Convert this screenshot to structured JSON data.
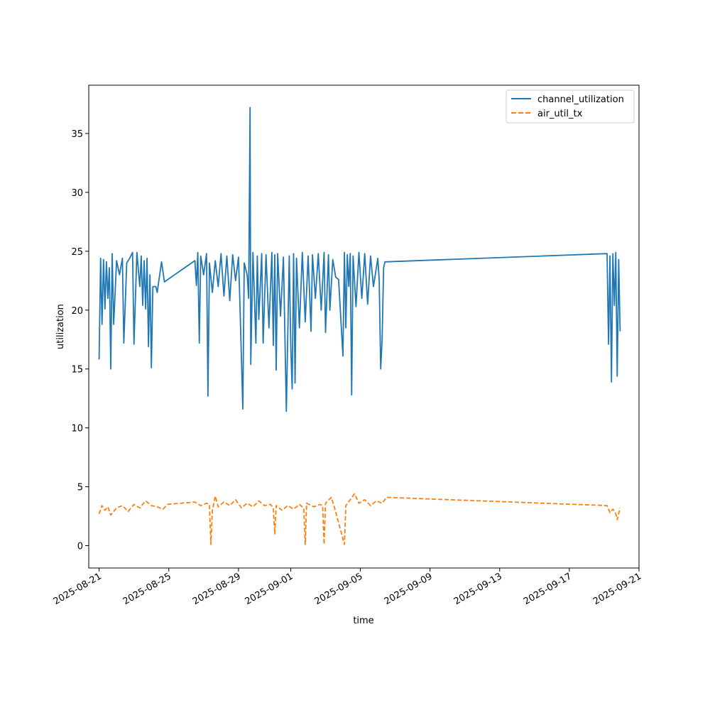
{
  "chart_data": {
    "type": "line",
    "xlabel": "time",
    "ylabel": "utilization",
    "x_type": "date",
    "xlim": [
      "2025-08-20T09:40",
      "2025-09-21"
    ],
    "ylim": [
      -1.9,
      39.1
    ],
    "x_ticks": [
      "2025-08-21",
      "2025-08-25",
      "2025-08-29",
      "2025-09-01",
      "2025-09-05",
      "2025-09-09",
      "2025-09-13",
      "2025-09-17",
      "2025-09-21"
    ],
    "y_ticks": [
      0,
      5,
      10,
      15,
      20,
      25,
      30,
      35
    ],
    "grid": false,
    "legend_position": "top-right",
    "series": [
      {
        "name": "channel_utilization",
        "color": "#1f77b4",
        "style": "solid",
        "points": [
          [
            "2025-08-21T00:00",
            15.8
          ],
          [
            "2025-08-21T02:00",
            24.4
          ],
          [
            "2025-08-21T04:00",
            18.8
          ],
          [
            "2025-08-21T06:00",
            24.3
          ],
          [
            "2025-08-21T08:00",
            20.1
          ],
          [
            "2025-08-21T10:00",
            24.1
          ],
          [
            "2025-08-21T12:00",
            21.0
          ],
          [
            "2025-08-21T14:00",
            23.6
          ],
          [
            "2025-08-21T16:00",
            15.0
          ],
          [
            "2025-08-21T18:00",
            24.8
          ],
          [
            "2025-08-21T20:00",
            18.8
          ],
          [
            "2025-08-22T00:00",
            24.2
          ],
          [
            "2025-08-22T04:00",
            23.0
          ],
          [
            "2025-08-22T08:00",
            24.4
          ],
          [
            "2025-08-22T10:00",
            17.2
          ],
          [
            "2025-08-22T14:00",
            24.0
          ],
          [
            "2025-08-22T18:00",
            24.4
          ],
          [
            "2025-08-22T22:00",
            24.9
          ],
          [
            "2025-08-23T00:00",
            17.1
          ],
          [
            "2025-08-23T04:00",
            24.9
          ],
          [
            "2025-08-23T08:00",
            22.0
          ],
          [
            "2025-08-23T10:00",
            24.6
          ],
          [
            "2025-08-23T12:00",
            20.4
          ],
          [
            "2025-08-23T14:00",
            24.2
          ],
          [
            "2025-08-23T16:00",
            20.1
          ],
          [
            "2025-08-23T18:00",
            24.4
          ],
          [
            "2025-08-23T20:00",
            16.9
          ],
          [
            "2025-08-23T22:00",
            23.0
          ],
          [
            "2025-08-24T00:00",
            15.1
          ],
          [
            "2025-08-24T02:00",
            22.0
          ],
          [
            "2025-08-24T06:00",
            22.0
          ],
          [
            "2025-08-24T08:00",
            21.5
          ],
          [
            "2025-08-24T14:00",
            24.1
          ],
          [
            "2025-08-24T18:00",
            22.4
          ],
          [
            "2025-08-26T12:00",
            24.2
          ],
          [
            "2025-08-26T14:00",
            22.1
          ],
          [
            "2025-08-26T16:00",
            24.9
          ],
          [
            "2025-08-26T18:00",
            17.2
          ],
          [
            "2025-08-26T20:00",
            24.6
          ],
          [
            "2025-08-27T00:00",
            23.0
          ],
          [
            "2025-08-27T04:00",
            24.8
          ],
          [
            "2025-08-27T06:00",
            12.7
          ],
          [
            "2025-08-27T08:00",
            24.0
          ],
          [
            "2025-08-27T12:00",
            21.5
          ],
          [
            "2025-08-27T16:00",
            24.2
          ],
          [
            "2025-08-27T20:00",
            22.0
          ],
          [
            "2025-08-28T00:00",
            24.8
          ],
          [
            "2025-08-28T04:00",
            21.2
          ],
          [
            "2025-08-28T08:00",
            24.6
          ],
          [
            "2025-08-28T12:00",
            20.8
          ],
          [
            "2025-08-28T16:00",
            24.7
          ],
          [
            "2025-08-28T20:00",
            22.5
          ],
          [
            "2025-08-29T00:00",
            24.5
          ],
          [
            "2025-08-29T02:00",
            20.6
          ],
          [
            "2025-08-29T06:00",
            11.6
          ],
          [
            "2025-08-29T08:00",
            24.0
          ],
          [
            "2025-08-29T12:00",
            23.0
          ],
          [
            "2025-08-29T14:00",
            21.0
          ],
          [
            "2025-08-29T16:00",
            37.2
          ],
          [
            "2025-08-29T17:00",
            15.4
          ],
          [
            "2025-08-29T20:00",
            24.9
          ],
          [
            "2025-08-30T00:00",
            17.2
          ],
          [
            "2025-08-30T02:00",
            24.6
          ],
          [
            "2025-08-30T04:00",
            19.2
          ],
          [
            "2025-08-30T08:00",
            24.8
          ],
          [
            "2025-08-30T10:00",
            17.2
          ],
          [
            "2025-08-30T14:00",
            24.7
          ],
          [
            "2025-08-30T18:00",
            18.5
          ],
          [
            "2025-08-30T22:00",
            24.9
          ],
          [
            "2025-08-31T00:00",
            17.0
          ],
          [
            "2025-08-31T02:00",
            24.7
          ],
          [
            "2025-08-31T04:00",
            14.9
          ],
          [
            "2025-08-31T06:00",
            24.8
          ],
          [
            "2025-08-31T10:00",
            19.5
          ],
          [
            "2025-08-31T14:00",
            24.5
          ],
          [
            "2025-08-31T18:00",
            11.4
          ],
          [
            "2025-08-31T22:00",
            24.6
          ],
          [
            "2025-09-01T00:00",
            17.0
          ],
          [
            "2025-09-01T02:00",
            13.3
          ],
          [
            "2025-09-01T04:00",
            24.8
          ],
          [
            "2025-09-01T06:00",
            13.8
          ],
          [
            "2025-09-01T08:00",
            24.4
          ],
          [
            "2025-09-01T12:00",
            18.5
          ],
          [
            "2025-09-01T16:00",
            24.9
          ],
          [
            "2025-09-01T20:00",
            19.0
          ],
          [
            "2025-09-02T00:00",
            24.6
          ],
          [
            "2025-09-02T04:00",
            18.2
          ],
          [
            "2025-09-02T06:00",
            24.7
          ],
          [
            "2025-09-02T10:00",
            21.0
          ],
          [
            "2025-09-02T14:00",
            24.8
          ],
          [
            "2025-09-02T18:00",
            20.0
          ],
          [
            "2025-09-02T22:00",
            24.9
          ],
          [
            "2025-09-03T00:00",
            18.1
          ],
          [
            "2025-09-03T04:00",
            24.7
          ],
          [
            "2025-09-03T06:00",
            20.0
          ],
          [
            "2025-09-03T10:00",
            24.3
          ],
          [
            "2025-09-03T14:00",
            22.8
          ],
          [
            "2025-09-03T18:00",
            22.6
          ],
          [
            "2025-09-04T00:00",
            16.1
          ],
          [
            "2025-09-04T02:00",
            24.9
          ],
          [
            "2025-09-04T04:00",
            18.5
          ],
          [
            "2025-09-04T06:00",
            24.7
          ],
          [
            "2025-09-04T08:00",
            22.0
          ],
          [
            "2025-09-04T10:00",
            24.8
          ],
          [
            "2025-09-04T12:00",
            12.8
          ],
          [
            "2025-09-04T14:00",
            24.6
          ],
          [
            "2025-09-04T18:00",
            20.3
          ],
          [
            "2025-09-04T22:00",
            24.9
          ],
          [
            "2025-09-05T02:00",
            21.0
          ],
          [
            "2025-09-05T06:00",
            24.8
          ],
          [
            "2025-09-05T10:00",
            20.5
          ],
          [
            "2025-09-05T14:00",
            24.6
          ],
          [
            "2025-09-05T18:00",
            22.0
          ],
          [
            "2025-09-06T00:00",
            24.4
          ],
          [
            "2025-09-06T02:00",
            22.5
          ],
          [
            "2025-09-06T04:00",
            15.0
          ],
          [
            "2025-09-06T06:00",
            17.5
          ],
          [
            "2025-09-06T08:00",
            23.6
          ],
          [
            "2025-09-06T10:00",
            24.1
          ],
          [
            "2025-09-19T04:00",
            24.8
          ],
          [
            "2025-09-19T06:00",
            17.1
          ],
          [
            "2025-09-19T08:00",
            24.6
          ],
          [
            "2025-09-19T10:00",
            13.9
          ],
          [
            "2025-09-19T12:00",
            24.8
          ],
          [
            "2025-09-19T14:00",
            20.4
          ],
          [
            "2025-09-19T16:00",
            24.9
          ],
          [
            "2025-09-19T18:00",
            14.4
          ],
          [
            "2025-09-19T20:00",
            24.3
          ],
          [
            "2025-09-19T22:00",
            18.2
          ]
        ]
      },
      {
        "name": "air_util_tx",
        "color": "#ff7f0e",
        "style": "dashed",
        "points": [
          [
            "2025-08-21T00:00",
            2.7
          ],
          [
            "2025-08-21T04:00",
            3.4
          ],
          [
            "2025-08-21T08:00",
            3.0
          ],
          [
            "2025-08-21T12:00",
            3.3
          ],
          [
            "2025-08-21T16:00",
            2.6
          ],
          [
            "2025-08-22T00:00",
            3.2
          ],
          [
            "2025-08-22T08:00",
            3.4
          ],
          [
            "2025-08-22T16:00",
            2.9
          ],
          [
            "2025-08-23T00:00",
            3.5
          ],
          [
            "2025-08-23T08:00",
            3.2
          ],
          [
            "2025-08-23T16:00",
            3.8
          ],
          [
            "2025-08-24T00:00",
            3.4
          ],
          [
            "2025-08-24T08:00",
            3.3
          ],
          [
            "2025-08-24T16:00",
            3.1
          ],
          [
            "2025-08-24T22:00",
            3.5
          ],
          [
            "2025-08-26T12:00",
            3.7
          ],
          [
            "2025-08-26T20:00",
            3.4
          ],
          [
            "2025-08-27T04:00",
            3.6
          ],
          [
            "2025-08-27T08:00",
            3.5
          ],
          [
            "2025-08-27T10:00",
            0.1
          ],
          [
            "2025-08-27T12:00",
            3.0
          ],
          [
            "2025-08-27T16:00",
            4.2
          ],
          [
            "2025-08-27T20:00",
            3.3
          ],
          [
            "2025-08-28T04:00",
            3.7
          ],
          [
            "2025-08-28T12:00",
            3.4
          ],
          [
            "2025-08-28T20:00",
            3.9
          ],
          [
            "2025-08-29T04:00",
            3.2
          ],
          [
            "2025-08-29T12:00",
            3.6
          ],
          [
            "2025-08-29T20:00",
            3.3
          ],
          [
            "2025-08-30T04:00",
            3.8
          ],
          [
            "2025-08-30T12:00",
            3.4
          ],
          [
            "2025-08-30T20:00",
            3.5
          ],
          [
            "2025-08-31T00:00",
            3.2
          ],
          [
            "2025-08-31T02:00",
            1.0
          ],
          [
            "2025-08-31T04:00",
            3.4
          ],
          [
            "2025-08-31T12:00",
            3.0
          ],
          [
            "2025-08-31T20:00",
            3.4
          ],
          [
            "2025-09-01T04:00",
            3.1
          ],
          [
            "2025-09-01T12:00",
            3.5
          ],
          [
            "2025-09-01T18:00",
            3.2
          ],
          [
            "2025-09-01T20:00",
            0.1
          ],
          [
            "2025-09-01T22:00",
            3.6
          ],
          [
            "2025-09-02T08:00",
            3.3
          ],
          [
            "2025-09-02T16:00",
            3.5
          ],
          [
            "2025-09-02T20:00",
            3.4
          ],
          [
            "2025-09-02T22:00",
            0.1
          ],
          [
            "2025-09-03T00:00",
            3.6
          ],
          [
            "2025-09-03T08:00",
            4.1
          ],
          [
            "2025-09-03T12:00",
            3.3
          ],
          [
            "2025-09-04T02:00",
            0.1
          ],
          [
            "2025-09-04T04:00",
            3.4
          ],
          [
            "2025-09-04T10:00",
            3.9
          ],
          [
            "2025-09-04T16:00",
            4.4
          ],
          [
            "2025-09-04T22:00",
            3.6
          ],
          [
            "2025-09-05T06:00",
            3.9
          ],
          [
            "2025-09-05T14:00",
            3.4
          ],
          [
            "2025-09-05T22:00",
            3.8
          ],
          [
            "2025-09-06T06:00",
            3.6
          ],
          [
            "2025-09-06T12:00",
            4.1
          ],
          [
            "2025-09-19T04:00",
            3.4
          ],
          [
            "2025-09-19T08:00",
            2.8
          ],
          [
            "2025-09-19T12:00",
            3.1
          ],
          [
            "2025-09-19T16:00",
            2.7
          ],
          [
            "2025-09-19T18:00",
            2.2
          ],
          [
            "2025-09-19T22:00",
            3.2
          ]
        ]
      }
    ]
  }
}
